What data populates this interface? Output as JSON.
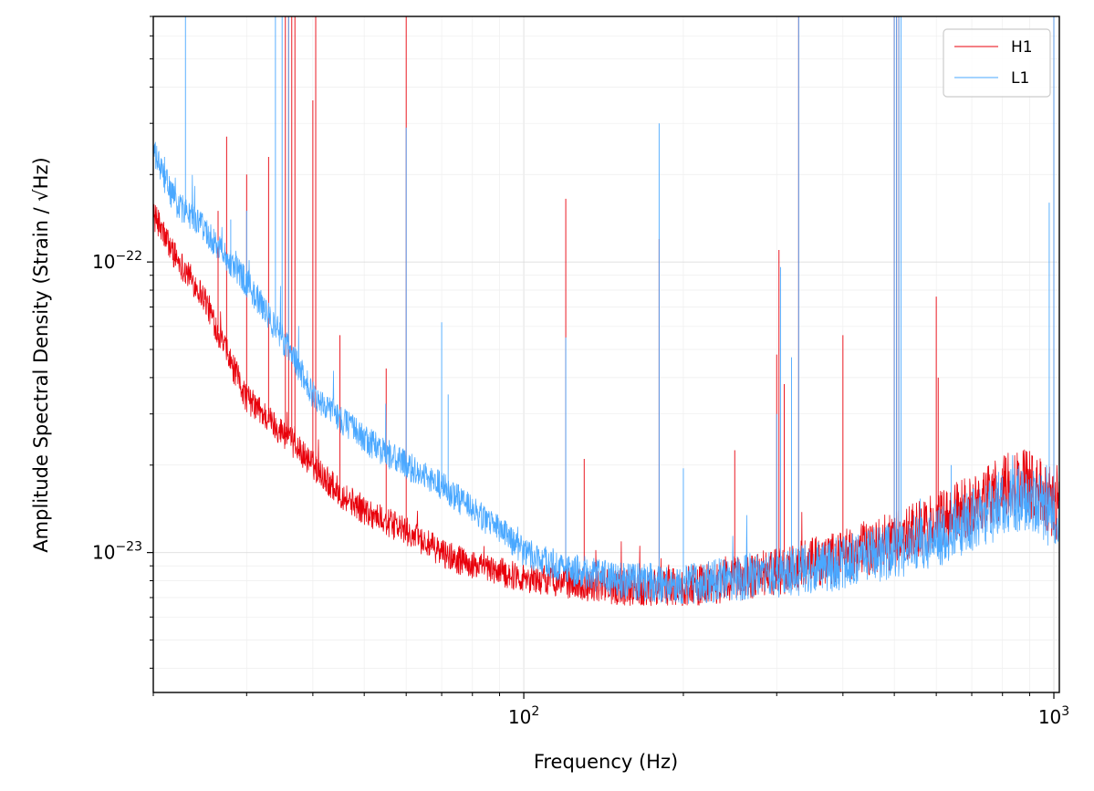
{
  "chart_data": {
    "type": "line",
    "title": "",
    "xlabel": "Frequency (Hz)",
    "ylabel": "Amplitude Spectral Density (Strain / √Hz)",
    "xscale": "log",
    "yscale": "log",
    "xlim": [
      20,
      1024
    ],
    "ylim": [
      3.3e-24,
      7e-22
    ],
    "x_ticks": [
      {
        "base": "10",
        "exp": "2",
        "value": 100
      },
      {
        "base": "10",
        "exp": "3",
        "value": 1000
      }
    ],
    "y_ticks": [
      {
        "base": "10",
        "exp": "−23",
        "value": 1e-23
      },
      {
        "base": "10",
        "exp": "−22",
        "value": 1e-22
      }
    ],
    "grid": true,
    "legend_position": "top-right",
    "series": [
      {
        "name": "H1",
        "color": "#e8000b",
        "floor": [
          [
            20,
            1.45e-22
          ],
          [
            22,
            1.05e-22
          ],
          [
            25,
            7.5e-23
          ],
          [
            28,
            4.5e-23
          ],
          [
            30,
            3.4e-23
          ],
          [
            35,
            2.6e-23
          ],
          [
            40,
            2e-23
          ],
          [
            45,
            1.6e-23
          ],
          [
            50,
            1.4e-23
          ],
          [
            60,
            1.18e-23
          ],
          [
            70,
            1e-23
          ],
          [
            80,
            9e-24
          ],
          [
            100,
            8.2e-24
          ],
          [
            150,
            7.6e-24
          ],
          [
            200,
            7.6e-24
          ],
          [
            300,
            8.6e-24
          ],
          [
            400,
            9.8e-24
          ],
          [
            500,
            1.1e-23
          ],
          [
            600,
            1.26e-23
          ],
          [
            700,
            1.45e-23
          ],
          [
            800,
            1.65e-23
          ],
          [
            870,
            1.8e-23
          ],
          [
            950,
            1.6e-23
          ],
          [
            1024,
            1.4e-23
          ]
        ],
        "spikes": [
          [
            26.5,
            1.5e-22
          ],
          [
            27.5,
            2.7e-22
          ],
          [
            30,
            2e-22
          ],
          [
            33,
            2.3e-22
          ],
          [
            35.5,
            7e-22
          ],
          [
            36,
            7e-22
          ],
          [
            36.5,
            7e-22
          ],
          [
            37,
            7e-22
          ],
          [
            40,
            3.6e-22
          ],
          [
            40.5,
            7e-22
          ],
          [
            45,
            5.6e-23
          ],
          [
            55,
            4.3e-23
          ],
          [
            60,
            7e-22
          ],
          [
            120,
            1.65e-22
          ],
          [
            130,
            2.1e-23
          ],
          [
            180,
            1.2e-22
          ],
          [
            250,
            2.25e-23
          ],
          [
            300,
            4.8e-23
          ],
          [
            303,
            1.1e-22
          ],
          [
            310,
            3.8e-23
          ],
          [
            330,
            7e-22
          ],
          [
            400,
            5.6e-23
          ],
          [
            500,
            7e-22
          ],
          [
            505,
            7e-22
          ],
          [
            510,
            7e-22
          ],
          [
            600,
            7.6e-23
          ],
          [
            605,
            4e-23
          ],
          [
            1000,
            7e-22
          ]
        ]
      },
      {
        "name": "L1",
        "color": "#4aa8ff",
        "floor": [
          [
            20,
            2.4e-22
          ],
          [
            22,
            1.6e-22
          ],
          [
            25,
            1.3e-22
          ],
          [
            28,
            1e-22
          ],
          [
            30,
            8.5e-23
          ],
          [
            33,
            6.5e-23
          ],
          [
            35,
            5.5e-23
          ],
          [
            40,
            3.5e-23
          ],
          [
            45,
            2.9e-23
          ],
          [
            50,
            2.45e-23
          ],
          [
            60,
            2e-23
          ],
          [
            70,
            1.7e-23
          ],
          [
            80,
            1.4e-23
          ],
          [
            90,
            1.2e-23
          ],
          [
            100,
            1e-23
          ],
          [
            120,
            8.8e-24
          ],
          [
            150,
            8e-24
          ],
          [
            200,
            7.8e-24
          ],
          [
            300,
            8.4e-24
          ],
          [
            400,
            9.2e-24
          ],
          [
            500,
            1.02e-23
          ],
          [
            600,
            1.12e-23
          ],
          [
            700,
            1.3e-23
          ],
          [
            800,
            1.45e-23
          ],
          [
            870,
            1.55e-23
          ],
          [
            950,
            1.45e-23
          ],
          [
            1024,
            1.2e-23
          ]
        ],
        "spikes": [
          [
            21,
            2.3e-22
          ],
          [
            22,
            1.6e-22
          ],
          [
            23,
            7e-22
          ],
          [
            26,
            1.3e-22
          ],
          [
            28,
            1.4e-22
          ],
          [
            30,
            1.5e-22
          ],
          [
            34,
            7e-22
          ],
          [
            35,
            7e-22
          ],
          [
            36,
            7e-22
          ],
          [
            60,
            2.9e-22
          ],
          [
            70,
            6.2e-23
          ],
          [
            72,
            3.5e-23
          ],
          [
            120,
            5.5e-23
          ],
          [
            180,
            3e-22
          ],
          [
            200,
            1.95e-23
          ],
          [
            300,
            3e-23
          ],
          [
            305,
            9.6e-23
          ],
          [
            320,
            4.7e-23
          ],
          [
            330,
            7e-22
          ],
          [
            500,
            7e-22
          ],
          [
            505,
            7e-22
          ],
          [
            510,
            7e-22
          ],
          [
            515,
            7e-22
          ],
          [
            640,
            2e-23
          ],
          [
            980,
            1.6e-22
          ],
          [
            1000,
            7e-22
          ]
        ]
      }
    ]
  }
}
